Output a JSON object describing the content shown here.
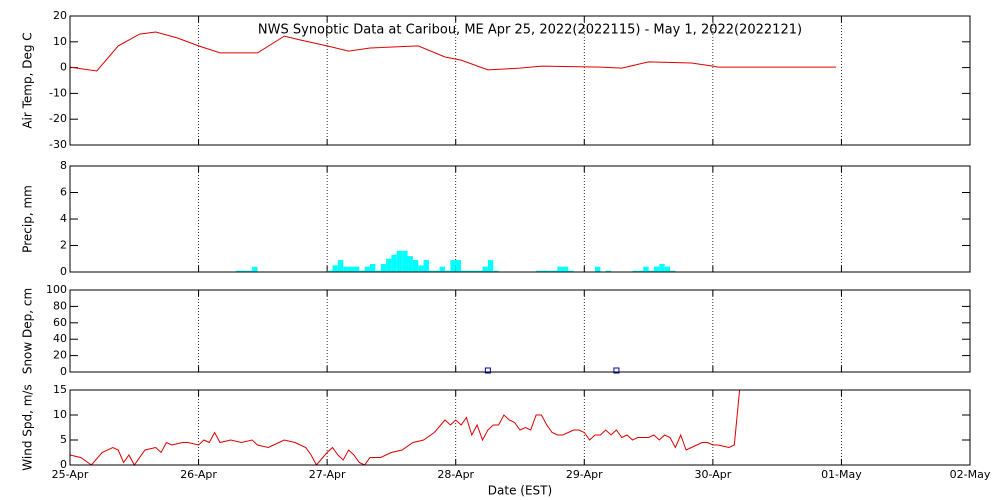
{
  "chart_data": [
    {
      "type": "line",
      "title": "NWS Synoptic Data at Caribou, ME   Apr 25, 2022(2022115) - May  1, 2022(2022121)",
      "ylabel": "Air Temp, Deg C",
      "color": "#dd0000",
      "x": [
        0,
        5,
        9,
        13,
        16,
        20,
        24,
        28,
        35,
        40,
        43,
        48,
        52,
        56,
        65,
        70,
        73,
        78,
        84,
        88,
        99,
        103,
        108,
        116,
        120,
        121,
        143
      ],
      "values": [
        0.2,
        -1.3,
        8.4,
        13,
        13.8,
        11.5,
        8.4,
        5.7,
        5.7,
        12.2,
        10.7,
        8.4,
        6.4,
        7.6,
        8.4,
        4.1,
        2.9,
        -0.9,
        -0.2,
        0.6,
        0.2,
        -0.2,
        2.2,
        1.8,
        0.6,
        0.2,
        0.2
      ],
      "ylim": [
        -30,
        20
      ],
      "yticks": [
        -30,
        -20,
        -10,
        0,
        10,
        20
      ],
      "grid": true
    },
    {
      "type": "bar",
      "ylabel": "Precip, mm",
      "color": "#00ffff",
      "x": [
        31,
        32,
        33,
        34,
        48,
        49,
        50,
        51,
        52,
        53,
        54,
        55,
        56,
        57,
        58,
        59,
        60,
        61,
        62,
        63,
        64,
        65,
        66,
        67,
        68,
        69,
        70,
        71,
        72,
        73,
        74,
        75,
        76,
        77,
        78,
        79,
        87,
        88,
        89,
        90,
        91,
        92,
        93,
        98,
        100,
        105,
        106,
        107,
        108,
        109,
        110,
        111,
        112
      ],
      "values": [
        0.1,
        0.1,
        0.1,
        0.4,
        0.1,
        0.5,
        0.9,
        0.4,
        0.4,
        0.4,
        0.1,
        0.4,
        0.6,
        0.1,
        0.6,
        1.0,
        1.3,
        1.6,
        1.6,
        1.2,
        0.9,
        0.5,
        0.9,
        0.1,
        0.1,
        0.4,
        0.1,
        0.9,
        0.9,
        0.1,
        0.1,
        0.1,
        0.1,
        0.4,
        0.9,
        0.1,
        0.1,
        0.1,
        0.1,
        0.1,
        0.4,
        0.4,
        0.1,
        0.4,
        0.1,
        0.1,
        0.1,
        0.4,
        0.1,
        0.4,
        0.6,
        0.4,
        0.1
      ],
      "ylim": [
        0,
        8
      ],
      "yticks": [
        0,
        2,
        4,
        6,
        8
      ],
      "grid": true
    },
    {
      "type": "scatter",
      "ylabel": "Snow Dep, cm",
      "color": "#0000aa",
      "x": [
        78,
        102
      ],
      "values": [
        0,
        0
      ],
      "ylim": [
        0,
        100
      ],
      "yticks": [
        0,
        20,
        40,
        60,
        80,
        100
      ],
      "grid": true
    },
    {
      "type": "line",
      "ylabel": "Wind Spd, m/s",
      "xlabel": "Date (EST)",
      "color": "#dd0000",
      "x": [
        0,
        2,
        4,
        6,
        8,
        9,
        10,
        11,
        12,
        14,
        16,
        17,
        18,
        19,
        21,
        22,
        24,
        25,
        26,
        27,
        28,
        30,
        32,
        34,
        35,
        37,
        38,
        40,
        42,
        44,
        45,
        46,
        48,
        49,
        50,
        51,
        52,
        53,
        54,
        55,
        56,
        58,
        60,
        62,
        64,
        66,
        68,
        70,
        71,
        72,
        73,
        74,
        75,
        76,
        77,
        78,
        79,
        80,
        81,
        82,
        83,
        84,
        85,
        86,
        87,
        88,
        89,
        90,
        91,
        92,
        93,
        94,
        95,
        96,
        97,
        98,
        99,
        100,
        101,
        102,
        103,
        104,
        105,
        106,
        107,
        108,
        109,
        110,
        111,
        112,
        113,
        114,
        115,
        116,
        117,
        118,
        119,
        120,
        121,
        123,
        124,
        125
      ],
      "values": [
        2,
        1.5,
        0,
        2.5,
        3.5,
        3,
        0.5,
        2,
        0,
        3,
        3.5,
        2.5,
        4.5,
        4,
        4.5,
        4.5,
        4,
        5,
        4.5,
        6.5,
        4.5,
        5,
        4.5,
        5,
        4,
        3.5,
        4,
        5,
        4.5,
        3.5,
        2,
        0,
        2.5,
        3.5,
        2,
        1,
        3,
        2,
        0.5,
        0,
        1.5,
        1.5,
        2.5,
        3,
        4.5,
        5,
        6.5,
        9,
        8,
        9,
        8,
        9.5,
        6,
        8,
        5,
        7,
        8,
        8,
        10,
        9,
        8.5,
        7,
        7.5,
        7,
        10,
        10,
        8,
        6.5,
        6,
        6,
        6.5,
        7,
        7,
        6.5,
        5,
        6,
        6,
        7,
        6,
        7,
        5.5,
        6,
        5,
        5.5,
        5.5,
        5.5,
        6,
        5,
        6,
        5.5,
        3.5,
        6,
        3,
        3.5,
        4,
        4.5,
        4.5,
        4,
        4,
        3.5,
        4,
        15
      ],
      "ylim": [
        0,
        15
      ],
      "yticks": [
        0,
        5,
        10,
        15
      ],
      "grid": true,
      "xlim": [
        0,
        168
      ],
      "xticks": [
        {
          "value": 0,
          "label": "25-Apr"
        },
        {
          "value": 24,
          "label": "26-Apr"
        },
        {
          "value": 48,
          "label": "27-Apr"
        },
        {
          "value": 72,
          "label": "28-Apr"
        },
        {
          "value": 96,
          "label": "29-Apr"
        },
        {
          "value": 120,
          "label": "30-Apr"
        },
        {
          "value": 144,
          "label": "01-May"
        },
        {
          "value": 168,
          "label": "02-May"
        }
      ]
    }
  ]
}
